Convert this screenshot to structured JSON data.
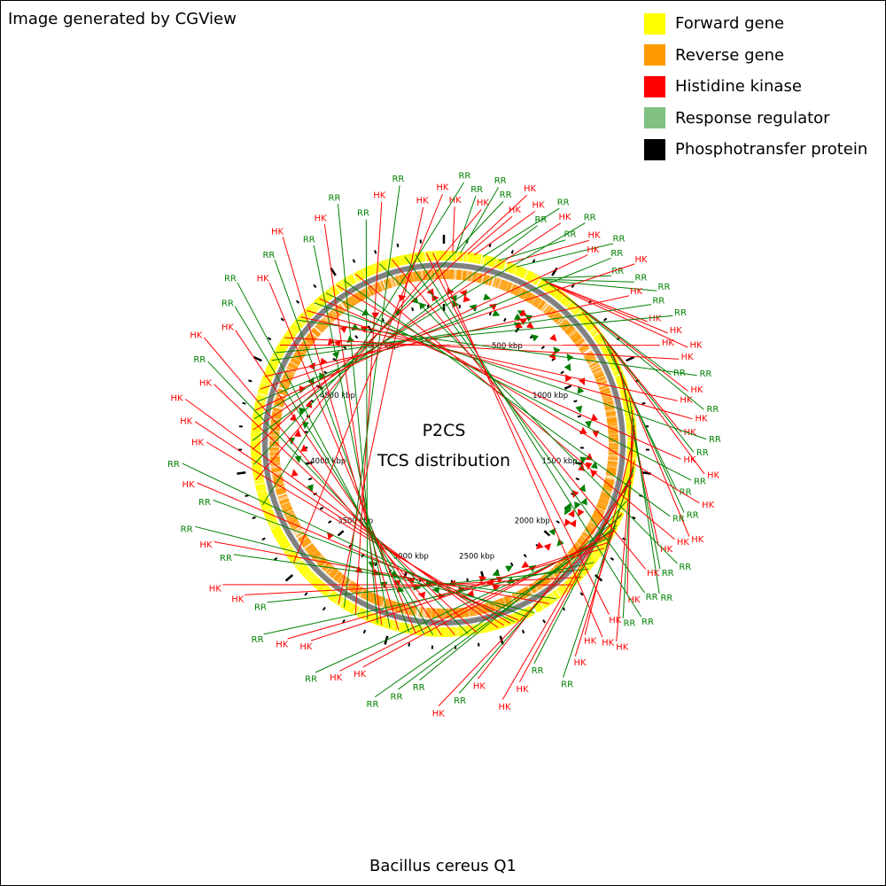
{
  "credit": "Image generated by CGView",
  "organism": "Bacillus cereus Q1",
  "center": {
    "line1": "P2CS",
    "line2": "TCS distribution"
  },
  "colors": {
    "forward": "#ffff00",
    "reverse": "#ff9900",
    "hk": "#ff0000",
    "rr": "#008000",
    "rr_legend": "#80c080",
    "backbone": "#808080",
    "pt": "#000000"
  },
  "legend": [
    {
      "label": "Forward gene",
      "color": "#ffff00"
    },
    {
      "label": "Reverse gene",
      "color": "#ff9900"
    },
    {
      "label": "Histidine kinase",
      "color": "#ff0000"
    },
    {
      "label": "Response regulator",
      "color": "#80c080"
    },
    {
      "label": "Phosphotransfer protein",
      "color": "#000000"
    }
  ],
  "genome_kbp": 5500,
  "kbp_labels": [
    {
      "pos": 500,
      "text": "500 kbp"
    },
    {
      "pos": 1000,
      "text": "1000 kbp"
    },
    {
      "pos": 1500,
      "text": "1500 kbp"
    },
    {
      "pos": 2000,
      "text": "2000 kbp"
    },
    {
      "pos": 2500,
      "text": "2500 kbp"
    },
    {
      "pos": 3000,
      "text": "3000 kbp"
    },
    {
      "pos": 3500,
      "text": "3500 kbp"
    },
    {
      "pos": 4000,
      "text": "4000 kbp"
    },
    {
      "pos": 4500,
      "text": "4500 kbp"
    },
    {
      "pos": 5000,
      "text": "5000 kbp"
    }
  ],
  "features": [
    {
      "kbp": 40,
      "type": "HK"
    },
    {
      "kbp": 55,
      "type": "RR"
    },
    {
      "kbp": 75,
      "type": "RR"
    },
    {
      "kbp": 110,
      "type": "HK"
    },
    {
      "kbp": 140,
      "type": "HK"
    },
    {
      "kbp": 180,
      "type": "RR"
    },
    {
      "kbp": 255,
      "type": "RR"
    },
    {
      "kbp": 295,
      "type": "HK"
    },
    {
      "kbp": 340,
      "type": "RR"
    },
    {
      "kbp": 460,
      "type": "RR"
    },
    {
      "kbp": 470,
      "type": "RR"
    },
    {
      "kbp": 478,
      "type": "RR"
    },
    {
      "kbp": 486,
      "type": "HK"
    },
    {
      "kbp": 494,
      "type": "HK"
    },
    {
      "kbp": 502,
      "type": "HK"
    },
    {
      "kbp": 510,
      "type": "RR"
    },
    {
      "kbp": 560,
      "type": "HK"
    },
    {
      "kbp": 610,
      "type": "RR"
    },
    {
      "kbp": 710,
      "type": "HK"
    },
    {
      "kbp": 760,
      "type": "RR"
    },
    {
      "kbp": 790,
      "type": "HK"
    },
    {
      "kbp": 840,
      "type": "RR"
    },
    {
      "kbp": 900,
      "type": "RR"
    },
    {
      "kbp": 940,
      "type": "HK"
    },
    {
      "kbp": 1010,
      "type": "HK"
    },
    {
      "kbp": 1040,
      "type": "RR"
    },
    {
      "kbp": 1160,
      "type": "RR"
    },
    {
      "kbp": 1220,
      "type": "HK"
    },
    {
      "kbp": 1260,
      "type": "RR"
    },
    {
      "kbp": 1290,
      "type": "HK"
    },
    {
      "kbp": 1320,
      "type": "HK"
    },
    {
      "kbp": 1450,
      "type": "HK"
    },
    {
      "kbp": 1480,
      "type": "RR"
    },
    {
      "kbp": 1495,
      "type": "RR"
    },
    {
      "kbp": 1510,
      "type": "HK"
    },
    {
      "kbp": 1520,
      "type": "HK"
    },
    {
      "kbp": 1550,
      "type": "HK"
    },
    {
      "kbp": 1640,
      "type": "RR"
    },
    {
      "kbp": 1700,
      "type": "HK"
    },
    {
      "kbp": 1710,
      "type": "RR"
    },
    {
      "kbp": 1760,
      "type": "RR"
    },
    {
      "kbp": 1775,
      "type": "RR"
    },
    {
      "kbp": 1790,
      "type": "HK"
    },
    {
      "kbp": 1805,
      "type": "HK"
    },
    {
      "kbp": 1820,
      "type": "RR"
    },
    {
      "kbp": 1850,
      "type": "HK"
    },
    {
      "kbp": 1880,
      "type": "HK"
    },
    {
      "kbp": 1960,
      "type": "RR"
    },
    {
      "kbp": 2000,
      "type": "RR"
    },
    {
      "kbp": 2050,
      "type": "HK"
    },
    {
      "kbp": 2100,
      "type": "HK"
    },
    {
      "kbp": 2200,
      "type": "RR"
    },
    {
      "kbp": 2240,
      "type": "HK"
    },
    {
      "kbp": 2320,
      "type": "RR"
    },
    {
      "kbp": 2360,
      "type": "RR"
    },
    {
      "kbp": 2400,
      "type": "HK"
    },
    {
      "kbp": 2420,
      "type": "RR"
    },
    {
      "kbp": 2440,
      "type": "HK"
    },
    {
      "kbp": 2470,
      "type": "HK"
    },
    {
      "kbp": 2500,
      "type": "HK"
    },
    {
      "kbp": 2600,
      "type": "HK"
    },
    {
      "kbp": 2640,
      "type": "RR"
    },
    {
      "kbp": 2700,
      "type": "HK"
    },
    {
      "kbp": 2760,
      "type": "HK"
    },
    {
      "kbp": 2800,
      "type": "RR"
    },
    {
      "kbp": 2840,
      "type": "RR"
    },
    {
      "kbp": 2880,
      "type": "HK"
    },
    {
      "kbp": 2910,
      "type": "RR"
    },
    {
      "kbp": 2960,
      "type": "HK"
    },
    {
      "kbp": 3000,
      "type": "RR"
    },
    {
      "kbp": 3040,
      "type": "HK"
    },
    {
      "kbp": 3060,
      "type": "RR"
    },
    {
      "kbp": 3110,
      "type": "RR"
    },
    {
      "kbp": 3170,
      "type": "HK"
    },
    {
      "kbp": 3230,
      "type": "RR"
    },
    {
      "kbp": 3260,
      "type": "HK"
    },
    {
      "kbp": 3540,
      "type": "HK"
    },
    {
      "kbp": 3840,
      "type": "RR"
    },
    {
      "kbp": 3960,
      "type": "HK"
    },
    {
      "kbp": 4030,
      "type": "RR"
    },
    {
      "kbp": 4100,
      "type": "HK"
    },
    {
      "kbp": 4140,
      "type": "RR"
    },
    {
      "kbp": 4190,
      "type": "HK"
    },
    {
      "kbp": 4240,
      "type": "RR"
    },
    {
      "kbp": 4280,
      "type": "HK"
    },
    {
      "kbp": 4320,
      "type": "RR"
    },
    {
      "kbp": 4380,
      "type": "HK"
    },
    {
      "kbp": 4440,
      "type": "HK"
    },
    {
      "kbp": 4520,
      "type": "RR"
    },
    {
      "kbp": 4560,
      "type": "RR"
    },
    {
      "kbp": 4600,
      "type": "HK"
    },
    {
      "kbp": 4640,
      "type": "HK"
    },
    {
      "kbp": 4740,
      "type": "RR"
    },
    {
      "kbp": 4760,
      "type": "HK"
    },
    {
      "kbp": 4800,
      "type": "HK"
    },
    {
      "kbp": 4850,
      "type": "RR"
    },
    {
      "kbp": 4880,
      "type": "HK"
    },
    {
      "kbp": 4920,
      "type": "RR"
    },
    {
      "kbp": 4980,
      "type": "HK"
    },
    {
      "kbp": 5020,
      "type": "RR"
    },
    {
      "kbp": 5080,
      "type": "HK"
    },
    {
      "kbp": 5200,
      "type": "RR"
    },
    {
      "kbp": 5260,
      "type": "HK"
    },
    {
      "kbp": 5320,
      "type": "RR"
    },
    {
      "kbp": 5370,
      "type": "RR"
    },
    {
      "kbp": 5420,
      "type": "HK"
    },
    {
      "kbp": 5450,
      "type": "HK"
    }
  ]
}
